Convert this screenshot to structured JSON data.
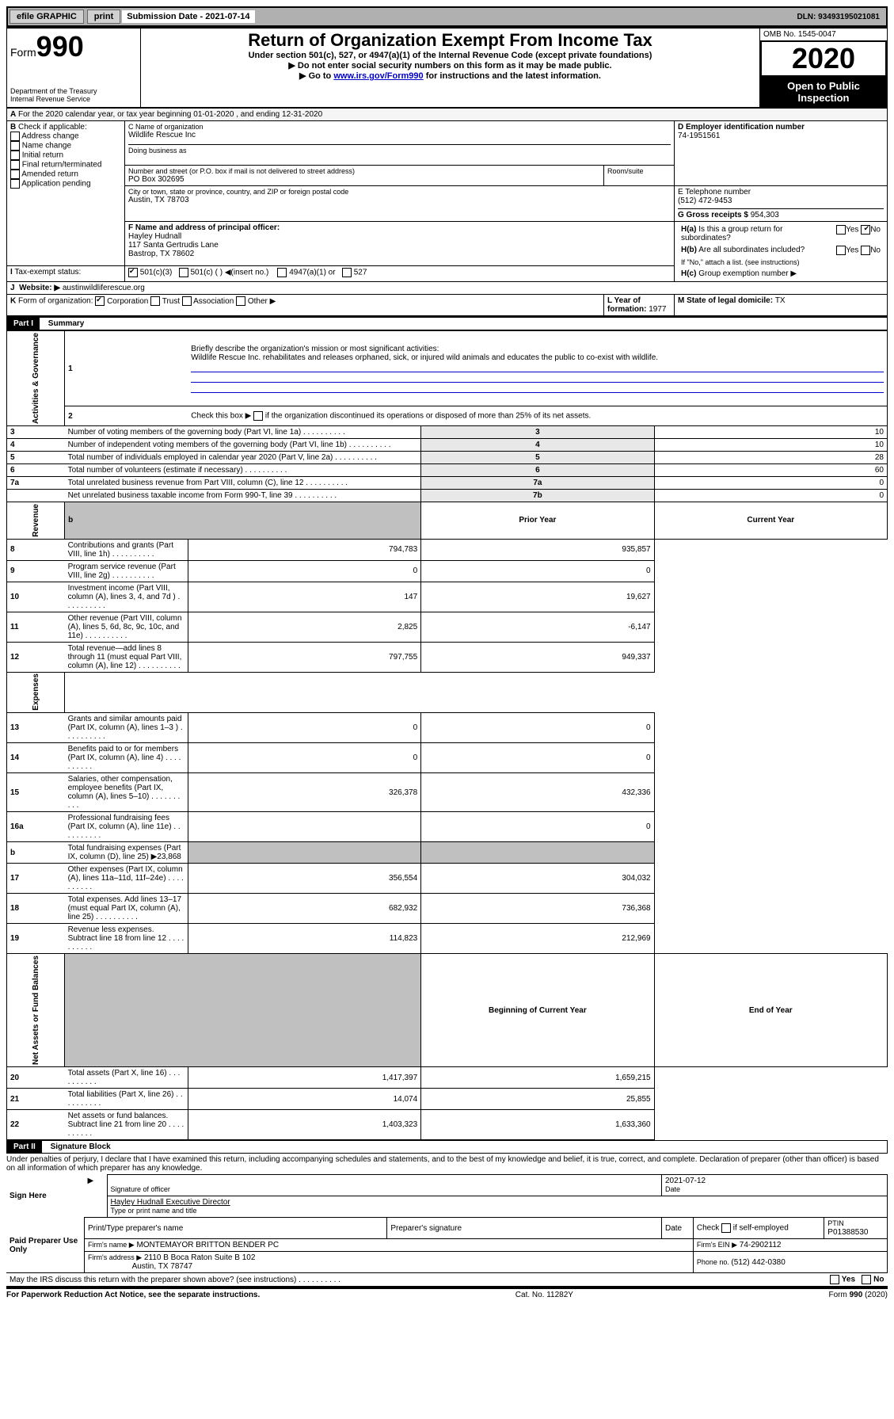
{
  "topbar": {
    "efile": "efile GRAPHIC",
    "print": "print",
    "submission_label": "Submission Date - 2021-07-14",
    "dln": "DLN: 93493195021081"
  },
  "header": {
    "form_label": "Form",
    "form_number": "990",
    "dept": "Department of the Treasury\nInternal Revenue Service",
    "title": "Return of Organization Exempt From Income Tax",
    "subtitle": "Under section 501(c), 527, or 4947(a)(1) of the Internal Revenue Code (except private foundations)",
    "note1": "Do not enter social security numbers on this form as it may be made public.",
    "note2_pre": "Go to ",
    "note2_link": "www.irs.gov/Form990",
    "note2_post": " for instructions and the latest information.",
    "omb": "OMB No. 1545-0047",
    "year": "2020",
    "open_public": "Open to Public Inspection"
  },
  "section_a": {
    "line_a": "For the 2020 calendar year, or tax year beginning 01-01-2020    , and ending 12-31-2020",
    "b_label": "Check if applicable:",
    "b_opts": [
      "Address change",
      "Name change",
      "Initial return",
      "Final return/terminated",
      "Amended return",
      "Application pending"
    ],
    "c_label": "C Name of organization",
    "c_name": "Wildlife Rescue Inc",
    "dba_label": "Doing business as",
    "addr_label": "Number and street (or P.O. box if mail is not delivered to street address)",
    "room_label": "Room/suite",
    "addr": "PO Box 302695",
    "city_label": "City or town, state or province, country, and ZIP or foreign postal code",
    "city": "Austin, TX  78703",
    "d_label": "D Employer identification number",
    "d_val": "74-1951561",
    "e_label": "E Telephone number",
    "e_val": "(512) 472-9453",
    "g_label": "G Gross receipts $ ",
    "g_val": "954,303",
    "f_label": "F  Name and address of principal officer:",
    "f_name": "Hayley Hudnall",
    "f_addr1": "117 Santa Gertrudis Lane",
    "f_addr2": "Bastrop, TX  78602",
    "ha_label": "Is this a group return for subordinates?",
    "hb_label": "Are all subordinates included?",
    "hb_note": "If \"No,\" attach a list. (see instructions)",
    "hc_label": "Group exemption number ▶",
    "yes": "Yes",
    "no": "No",
    "tax_exempt_label": "Tax-exempt status:",
    "te_501c3": "501(c)(3)",
    "te_501c": "501(c) (  ) ◀(insert no.)",
    "te_4947": "4947(a)(1) or",
    "te_527": "527",
    "website_label": "Website: ▶",
    "website": "austinwildliferescue.org",
    "k_label": "Form of organization:",
    "k_opts": [
      "Corporation",
      "Trust",
      "Association",
      "Other ▶"
    ],
    "l_label": "L Year of formation: ",
    "l_val": "1977",
    "m_label": "M State of legal domicile: ",
    "m_val": "TX"
  },
  "part1": {
    "header": "Part I",
    "title": "Summary",
    "q1_label": "Briefly describe the organization's mission or most significant activities:",
    "q1_text": "Wildlife Rescue Inc. rehabilitates and releases orphaned, sick, or injured wild animals and educates the public to co-exist with wildlife.",
    "q2": "Check this box ▶       if the organization discontinued its operations or disposed of more than 25% of its net assets.",
    "sections": {
      "governance": "Activities & Governance",
      "revenue": "Revenue",
      "expenses": "Expenses",
      "netassets": "Net Assets or Fund Balances"
    },
    "rows_single": [
      {
        "n": "3",
        "label": "Number of voting members of the governing body (Part VI, line 1a)",
        "box": "3",
        "val": "10"
      },
      {
        "n": "4",
        "label": "Number of independent voting members of the governing body (Part VI, line 1b)",
        "box": "4",
        "val": "10"
      },
      {
        "n": "5",
        "label": "Total number of individuals employed in calendar year 2020 (Part V, line 2a)",
        "box": "5",
        "val": "28"
      },
      {
        "n": "6",
        "label": "Total number of volunteers (estimate if necessary)",
        "box": "6",
        "val": "60"
      },
      {
        "n": "7a",
        "label": "Total unrelated business revenue from Part VIII, column (C), line 12",
        "box": "7a",
        "val": "0"
      },
      {
        "n": "",
        "label": "Net unrelated business taxable income from Form 990-T, line 39",
        "box": "7b",
        "val": "0"
      }
    ],
    "col_headers": {
      "prior": "Prior Year",
      "current": "Current Year",
      "beg": "Beginning of Current Year",
      "end": "End of Year"
    },
    "rows_revenue": [
      {
        "n": "8",
        "label": "Contributions and grants (Part VIII, line 1h)",
        "prior": "794,783",
        "current": "935,857"
      },
      {
        "n": "9",
        "label": "Program service revenue (Part VIII, line 2g)",
        "prior": "0",
        "current": "0"
      },
      {
        "n": "10",
        "label": "Investment income (Part VIII, column (A), lines 3, 4, and 7d )",
        "prior": "147",
        "current": "19,627"
      },
      {
        "n": "11",
        "label": "Other revenue (Part VIII, column (A), lines 5, 6d, 8c, 9c, 10c, and 11e)",
        "prior": "2,825",
        "current": "-6,147"
      },
      {
        "n": "12",
        "label": "Total revenue—add lines 8 through 11 (must equal Part VIII, column (A), line 12)",
        "prior": "797,755",
        "current": "949,337"
      }
    ],
    "rows_expenses": [
      {
        "n": "13",
        "label": "Grants and similar amounts paid (Part IX, column (A), lines 1–3 )",
        "prior": "0",
        "current": "0"
      },
      {
        "n": "14",
        "label": "Benefits paid to or for members (Part IX, column (A), line 4)",
        "prior": "0",
        "current": "0"
      },
      {
        "n": "15",
        "label": "Salaries, other compensation, employee benefits (Part IX, column (A), lines 5–10)",
        "prior": "326,378",
        "current": "432,336"
      },
      {
        "n": "16a",
        "label": "Professional fundraising fees (Part IX, column (A), line 11e)",
        "prior": "",
        "current": "0"
      },
      {
        "n": "b",
        "label": "Total fundraising expenses (Part IX, column (D), line 25) ▶23,868",
        "prior": "SHADED",
        "current": "SHADED"
      },
      {
        "n": "17",
        "label": "Other expenses (Part IX, column (A), lines 11a–11d, 11f–24e)",
        "prior": "356,554",
        "current": "304,032"
      },
      {
        "n": "18",
        "label": "Total expenses. Add lines 13–17 (must equal Part IX, column (A), line 25)",
        "prior": "682,932",
        "current": "736,368"
      },
      {
        "n": "19",
        "label": "Revenue less expenses. Subtract line 18 from line 12",
        "prior": "114,823",
        "current": "212,969"
      }
    ],
    "rows_net": [
      {
        "n": "20",
        "label": "Total assets (Part X, line 16)",
        "prior": "1,417,397",
        "current": "1,659,215"
      },
      {
        "n": "21",
        "label": "Total liabilities (Part X, line 26)",
        "prior": "14,074",
        "current": "25,855"
      },
      {
        "n": "22",
        "label": "Net assets or fund balances. Subtract line 21 from line 20",
        "prior": "1,403,323",
        "current": "1,633,360"
      }
    ]
  },
  "part2": {
    "header": "Part II",
    "title": "Signature Block",
    "declaration": "Under penalties of perjury, I declare that I have examined this return, including accompanying schedules and statements, and to the best of my knowledge and belief, it is true, correct, and complete. Declaration of preparer (other than officer) is based on all information of which preparer has any knowledge.",
    "sign_here": "Sign Here",
    "sig_officer": "Signature of officer",
    "sig_date": "2021-07-12",
    "date_label": "Date",
    "officer_name": "Hayley Hudnall  Executive Director",
    "type_name_label": "Type or print name and title",
    "paid_label": "Paid Preparer Use Only",
    "prep_name_label": "Print/Type preparer's name",
    "prep_sig_label": "Preparer's signature",
    "check_if": "Check        if self-employed",
    "ptin_label": "PTIN",
    "ptin": "P01388530",
    "firm_name_label": "Firm's name    ▶",
    "firm_name": "MONTEMAYOR BRITTON BENDER PC",
    "firm_ein_label": "Firm's EIN ▶",
    "firm_ein": "74-2902112",
    "firm_addr_label": "Firm's address ▶",
    "firm_addr1": "2110 B Boca Raton Suite B 102",
    "firm_addr2": "Austin, TX  78747",
    "phone_label": "Phone no. ",
    "phone": "(512) 442-0380",
    "discuss": "May the IRS discuss this return with the preparer shown above? (see instructions)"
  },
  "footer": {
    "paperwork": "For Paperwork Reduction Act Notice, see the separate instructions.",
    "cat": "Cat. No. 11282Y",
    "form": "Form 990 (2020)"
  }
}
